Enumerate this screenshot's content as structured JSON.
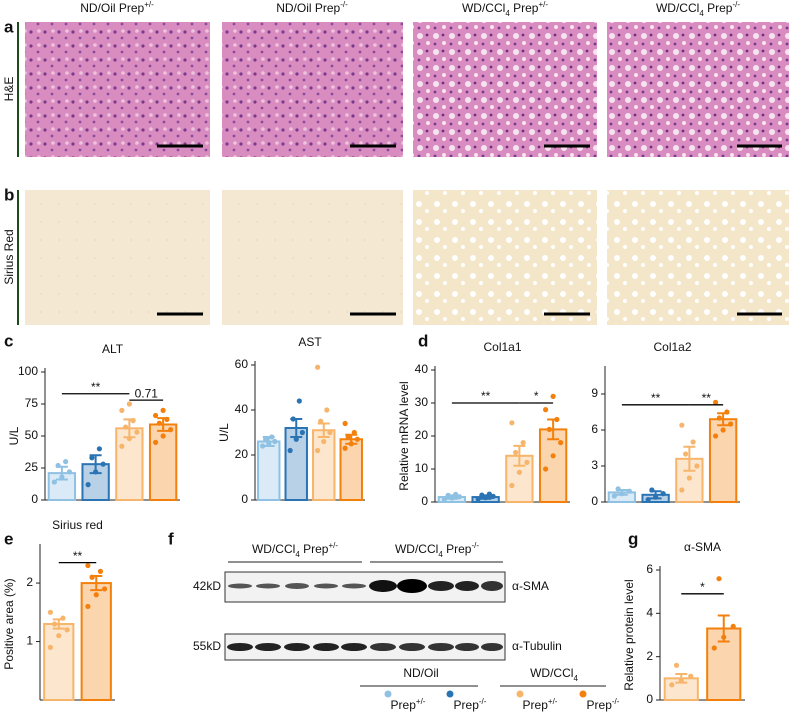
{
  "panels": [
    "a",
    "b",
    "c",
    "d",
    "e",
    "f",
    "g"
  ],
  "columns": [
    [
      {
        "t": "ND/Oil Prep"
      },
      {
        "t": "+/-",
        "sup": true
      }
    ],
    [
      {
        "t": "ND/Oil Prep"
      },
      {
        "t": "-/-",
        "sup": true
      }
    ],
    [
      {
        "t": "WD/CCl"
      },
      {
        "t": "4",
        "sub": true
      },
      {
        "t": " Prep"
      },
      {
        "t": "+/-",
        "sup": true
      }
    ],
    [
      {
        "t": "WD/CCl"
      },
      {
        "t": "4",
        "sub": true
      },
      {
        "t": " Prep"
      },
      {
        "t": "-/-",
        "sup": true
      }
    ]
  ],
  "rows": [
    "H&E",
    "Sirius Red"
  ],
  "chart_data": [
    {
      "type": "bar",
      "title": "ALT",
      "ylabel": "U/L",
      "values": [
        21,
        28,
        56,
        59
      ],
      "errors": [
        5,
        7,
        7,
        5
      ],
      "points": [
        [
          14,
          18,
          22,
          27,
          30
        ],
        [
          12,
          22,
          28,
          33,
          40
        ],
        [
          42,
          48,
          53,
          57,
          62,
          70,
          75
        ],
        [
          45,
          50,
          55,
          60,
          63,
          66,
          70
        ]
      ],
      "colors": [
        "#8fc1e3",
        "#2b74b4",
        "#f7b56b",
        "#f3800c"
      ],
      "ylim": [
        0,
        100
      ],
      "yticks": [
        0,
        25,
        50,
        75,
        100
      ],
      "brackets": [
        {
          "label": "**",
          "between": [
            0,
            2
          ],
          "y": 83
        },
        {
          "label": "0.71",
          "between": [
            2,
            3
          ],
          "y": 78
        }
      ]
    },
    {
      "type": "bar",
      "title": "AST",
      "ylabel": "U/L",
      "values": [
        26,
        32,
        31,
        27
      ],
      "errors": [
        2,
        4,
        3,
        2
      ],
      "points": [
        [
          24,
          25,
          26,
          27,
          28
        ],
        [
          22,
          27,
          30,
          36,
          44
        ],
        [
          22,
          26,
          30,
          35,
          40,
          59
        ],
        [
          23,
          25,
          27,
          28,
          30,
          34
        ]
      ],
      "colors": [
        "#8fc1e3",
        "#2b74b4",
        "#f7b56b",
        "#f3800c"
      ],
      "ylim": [
        0,
        60
      ],
      "yticks": [
        0,
        20,
        40,
        60
      ],
      "brackets": []
    },
    {
      "type": "bar",
      "title": "Col1a1",
      "ylabel": "Relative mRNA level",
      "values": [
        1.5,
        1.5,
        14,
        22
      ],
      "errors": [
        0.5,
        0.5,
        3,
        3
      ],
      "points": [
        [
          0.8,
          1.2,
          1.6,
          2,
          2.3
        ],
        [
          0.9,
          1.3,
          1.7,
          2.1,
          2.4
        ],
        [
          5,
          9,
          12,
          15,
          18,
          24
        ],
        [
          10,
          14,
          18,
          22,
          25,
          28,
          32
        ]
      ],
      "colors": [
        "#8fc1e3",
        "#2b74b4",
        "#f7b56b",
        "#f3800c"
      ],
      "ylim": [
        0,
        40
      ],
      "yticks": [
        0,
        10,
        20,
        30,
        40
      ],
      "brackets": [
        {
          "label": "**",
          "between": [
            0,
            2
          ],
          "y": 30
        },
        {
          "label": "*",
          "between": [
            2,
            3
          ],
          "y": 30
        }
      ]
    },
    {
      "type": "bar",
      "title": "Col1a2",
      "values": [
        0.8,
        0.6,
        3.6,
        6.9
      ],
      "errors": [
        0.2,
        0.3,
        1,
        0.5
      ],
      "points": [
        [
          0.5,
          0.7,
          0.9,
          1.1
        ],
        [
          0.2,
          0.4,
          0.7,
          1
        ],
        [
          1,
          2,
          3,
          4,
          5,
          6.4
        ],
        [
          5.5,
          6,
          6.5,
          7,
          7.5,
          8.3
        ]
      ],
      "colors": [
        "#8fc1e3",
        "#2b74b4",
        "#f7b56b",
        "#f3800c"
      ],
      "ylim": [
        0,
        11
      ],
      "yticks": [
        0,
        3,
        6,
        9
      ],
      "brackets": [
        {
          "label": "**",
          "between": [
            0,
            2
          ],
          "y": 8.1
        },
        {
          "label": "**",
          "between": [
            2,
            3
          ],
          "y": 8.1
        }
      ]
    },
    {
      "type": "bar",
      "title": "Sirius red",
      "ylabel": "Positive area (%)",
      "values": [
        1.3,
        2
      ],
      "errors": [
        0.08,
        0.12
      ],
      "points": [
        [
          0.9,
          1.1,
          1.2,
          1.3,
          1.4,
          1.5
        ],
        [
          1.6,
          1.8,
          1.9,
          2.1,
          2.2,
          2.3
        ]
      ],
      "colors": [
        "#f7b56b",
        "#f3800c"
      ],
      "ylim": [
        0,
        2.6
      ],
      "yticks": [
        1,
        2
      ],
      "brackets": [
        {
          "label": "**",
          "between": [
            0,
            1
          ],
          "y": 2.35
        }
      ]
    },
    {
      "type": "bar",
      "title": "α-SMA",
      "ylabel": "Relative protein level",
      "values": [
        1,
        3.3
      ],
      "errors": [
        0.2,
        0.6
      ],
      "points": [
        [
          0.7,
          0.9,
          1.1,
          1.6
        ],
        [
          2.4,
          2.9,
          3.4,
          5.6
        ]
      ],
      "colors": [
        "#f7b56b",
        "#f3800c"
      ],
      "ylim": [
        0,
        6
      ],
      "yticks": [
        0,
        2,
        4,
        6
      ],
      "brackets": [
        {
          "label": "*",
          "between": [
            0,
            1
          ],
          "y": 4.9
        }
      ]
    }
  ],
  "blot": {
    "groups": [
      [
        {
          "t": "WD/CCl"
        },
        {
          "t": "4",
          "sub": true
        },
        {
          "t": " Prep"
        },
        {
          "t": "+/-",
          "sup": true
        }
      ],
      [
        {
          "t": "WD/CCl"
        },
        {
          "t": "4",
          "sub": true
        },
        {
          "t": " Prep"
        },
        {
          "t": "-/-",
          "sup": true
        }
      ]
    ],
    "markers": [
      "42kD",
      "55kD"
    ],
    "proteins": [
      "α-SMA",
      "α-Tubulin"
    ]
  },
  "legend": {
    "groups": [
      [
        {
          "t": "ND/Oil"
        }
      ],
      [
        {
          "t": "WD/CCl"
        },
        {
          "t": "4",
          "sub": true
        }
      ]
    ],
    "items": [
      [
        {
          "t": "Prep"
        },
        {
          "t": "+/-",
          "sup": true
        }
      ],
      [
        {
          "t": "Prep"
        },
        {
          "t": "-/-",
          "sup": true
        }
      ],
      [
        {
          "t": "Prep"
        },
        {
          "t": "+/-",
          "sup": true
        }
      ],
      [
        {
          "t": "Prep"
        },
        {
          "t": "-/-",
          "sup": true
        }
      ]
    ],
    "colors": [
      "#8fc1e3",
      "#2b74b4",
      "#f7b56b",
      "#f3800c"
    ]
  }
}
